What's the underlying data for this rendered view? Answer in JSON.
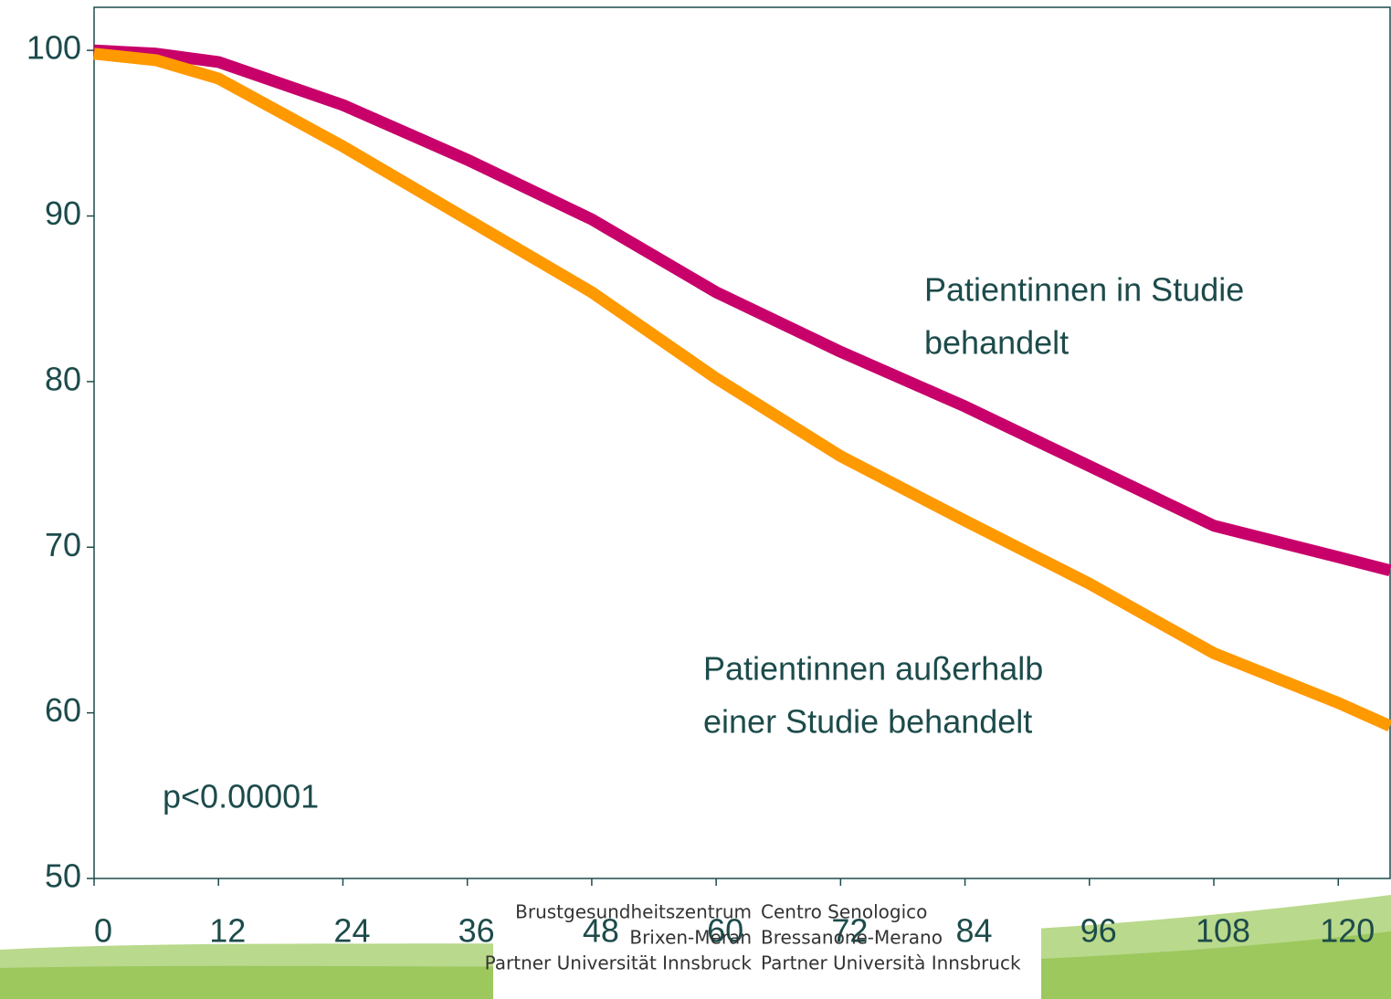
{
  "chart_data": {
    "type": "line",
    "x": [
      0,
      6,
      12,
      24,
      36,
      48,
      60,
      72,
      84,
      96,
      108,
      120,
      125
    ],
    "series": [
      {
        "name": "Patientinnen in Studie behandelt",
        "color": "#c8006a",
        "values": [
          100,
          99.8,
          99.3,
          96.7,
          93.4,
          89.8,
          85.4,
          81.8,
          78.5,
          74.9,
          71.3,
          69.4,
          68.6
        ]
      },
      {
        "name": "Patientinnen außerhalb einer Studie behandelt",
        "color": "#ff9900",
        "values": [
          99.8,
          99.4,
          98.3,
          94.2,
          89.8,
          85.4,
          80.2,
          75.5,
          71.6,
          67.8,
          63.6,
          60.6,
          59.2
        ]
      }
    ],
    "xlim": [
      0,
      125
    ],
    "xticks": [
      0,
      12,
      24,
      36,
      48,
      60,
      72,
      84,
      96,
      108,
      120
    ],
    "ylim": [
      50,
      102.6
    ],
    "yticks": [
      50,
      60,
      70,
      80,
      90,
      100
    ],
    "annotations": [
      {
        "lines": [
          "Patientinnen in Studie",
          "behandelt"
        ]
      },
      {
        "lines": [
          "Patientinnen außerhalb",
          "einer Studie behandelt"
        ]
      },
      {
        "lines": [
          "p<0.00001"
        ]
      }
    ]
  },
  "footer": {
    "left": [
      "Brustgesundheitszentrum",
      "Brixen-Meran",
      "Partner Universität Innsbruck"
    ],
    "right": [
      "Centro Senologico",
      "Bressanone-Merano",
      "Partner Università Innsbruck"
    ]
  }
}
